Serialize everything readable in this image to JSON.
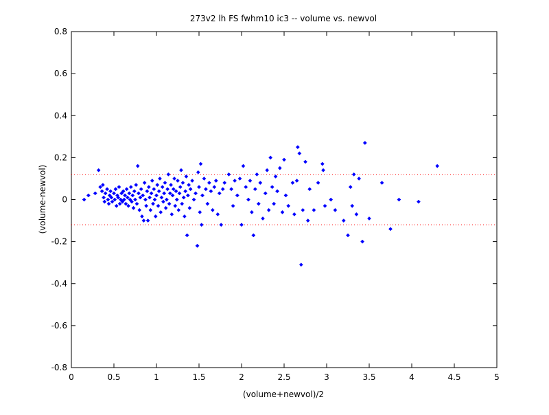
{
  "chart_data": {
    "type": "scatter",
    "title": "273v2 lh FS fwhm10 ic3 -- volume vs. newvol",
    "xlabel": "(volume+newvol)/2",
    "ylabel": "(volume-newvol)",
    "xlim": [
      0,
      5
    ],
    "ylim": [
      -0.8,
      0.8
    ],
    "xticks": [
      0,
      0.5,
      1,
      1.5,
      2,
      2.5,
      3,
      3.5,
      4,
      4.5,
      5
    ],
    "yticks": [
      -0.8,
      -0.6,
      -0.4,
      -0.2,
      0,
      0.2,
      0.4,
      0.6,
      0.8
    ],
    "xtick_labels": [
      "0",
      "0.5",
      "1",
      "1.5",
      "2",
      "2.5",
      "3",
      "3.5",
      "4",
      "4.5",
      "5"
    ],
    "ytick_labels": [
      "-0.8",
      "-0.6",
      "-0.4",
      "-0.2",
      "0",
      "0.2",
      "0.4",
      "0.6",
      "0.8"
    ],
    "grid": false,
    "marker_color": "#0000ff",
    "reference_lines": [
      {
        "y": 0.12,
        "style": "dotted",
        "color": "#ff0000"
      },
      {
        "y": -0.12,
        "style": "dotted",
        "color": "#ff0000"
      }
    ],
    "series": [
      {
        "marker": "diamond",
        "points": [
          [
            0.15,
            0.0
          ],
          [
            0.2,
            0.02
          ],
          [
            0.28,
            0.03
          ],
          [
            0.32,
            0.14
          ],
          [
            0.34,
            0.06
          ],
          [
            0.36,
            0.04
          ],
          [
            0.37,
            0.07
          ],
          [
            0.38,
            0.01
          ],
          [
            0.39,
            -0.01
          ],
          [
            0.4,
            0.03
          ],
          [
            0.42,
            0.05
          ],
          [
            0.43,
            0.0
          ],
          [
            0.44,
            -0.02
          ],
          [
            0.45,
            0.02
          ],
          [
            0.46,
            0.04
          ],
          [
            0.47,
            0.01
          ],
          [
            0.48,
            -0.01
          ],
          [
            0.5,
            0.03
          ],
          [
            0.51,
            0.0
          ],
          [
            0.52,
            0.05
          ],
          [
            0.53,
            -0.03
          ],
          [
            0.54,
            0.02
          ],
          [
            0.55,
            0.01
          ],
          [
            0.56,
            0.06
          ],
          [
            0.57,
            -0.02
          ],
          [
            0.58,
            0.0
          ],
          [
            0.59,
            0.03
          ],
          [
            0.6,
            -0.01
          ],
          [
            0.61,
            0.04
          ],
          [
            0.62,
            0.0
          ],
          [
            0.63,
            0.02
          ],
          [
            0.64,
            -0.02
          ],
          [
            0.65,
            0.05
          ],
          [
            0.66,
            0.01
          ],
          [
            0.67,
            -0.03
          ],
          [
            0.68,
            0.03
          ],
          [
            0.69,
            0.0
          ],
          [
            0.7,
            0.06
          ],
          [
            0.71,
            -0.01
          ],
          [
            0.72,
            0.02
          ],
          [
            0.73,
            -0.04
          ],
          [
            0.74,
            0.04
          ],
          [
            0.75,
            0.0
          ],
          [
            0.76,
            0.07
          ],
          [
            0.77,
            -0.02
          ],
          [
            0.78,
            0.16
          ],
          [
            0.79,
            0.03
          ],
          [
            0.8,
            -0.05
          ],
          [
            0.81,
            0.01
          ],
          [
            0.82,
            0.05
          ],
          [
            0.83,
            -0.08
          ],
          [
            0.84,
            0.02
          ],
          [
            0.85,
            -0.1
          ],
          [
            0.86,
            0.08
          ],
          [
            0.87,
            0.0
          ],
          [
            0.88,
            -0.03
          ],
          [
            0.89,
            0.04
          ],
          [
            0.9,
            -0.1
          ],
          [
            0.91,
            0.06
          ],
          [
            0.92,
            0.01
          ],
          [
            0.93,
            -0.05
          ],
          [
            0.94,
            0.03
          ],
          [
            0.95,
            0.09
          ],
          [
            0.96,
            -0.02
          ],
          [
            0.97,
            0.05
          ],
          [
            0.98,
            0.0
          ],
          [
            0.99,
            -0.08
          ],
          [
            1.0,
            0.02
          ],
          [
            1.01,
            0.07
          ],
          [
            1.02,
            -0.03
          ],
          [
            1.03,
            0.04
          ],
          [
            1.04,
            0.1
          ],
          [
            1.05,
            -0.06
          ],
          [
            1.06,
            0.01
          ],
          [
            1.07,
            0.06
          ],
          [
            1.08,
            -0.01
          ],
          [
            1.09,
            0.03
          ],
          [
            1.1,
            0.08
          ],
          [
            1.11,
            -0.04
          ],
          [
            1.12,
            0.0
          ],
          [
            1.13,
            0.05
          ],
          [
            1.14,
            0.12
          ],
          [
            1.15,
            -0.02
          ],
          [
            1.16,
            0.03
          ],
          [
            1.17,
            0.07
          ],
          [
            1.18,
            -0.07
          ],
          [
            1.19,
            0.02
          ],
          [
            1.2,
            0.05
          ],
          [
            1.21,
            0.1
          ],
          [
            1.22,
            -0.03
          ],
          [
            1.23,
            0.04
          ],
          [
            1.24,
            0.0
          ],
          [
            1.25,
            0.09
          ],
          [
            1.26,
            -0.05
          ],
          [
            1.27,
            0.03
          ],
          [
            1.28,
            0.06
          ],
          [
            1.29,
            0.14
          ],
          [
            1.3,
            -0.02
          ],
          [
            1.31,
            0.08
          ],
          [
            1.32,
            0.01
          ],
          [
            1.33,
            -0.08
          ],
          [
            1.34,
            0.04
          ],
          [
            1.35,
            0.11
          ],
          [
            1.36,
            -0.17
          ],
          [
            1.37,
            0.02
          ],
          [
            1.38,
            0.07
          ],
          [
            1.39,
            -0.04
          ],
          [
            1.4,
            0.05
          ],
          [
            1.42,
            0.09
          ],
          [
            1.44,
            0.0
          ],
          [
            1.46,
            0.03
          ],
          [
            1.48,
            -0.22
          ],
          [
            1.49,
            0.13
          ],
          [
            1.5,
            0.06
          ],
          [
            1.51,
            -0.06
          ],
          [
            1.52,
            0.17
          ],
          [
            1.53,
            -0.12
          ],
          [
            1.54,
            0.02
          ],
          [
            1.56,
            0.1
          ],
          [
            1.58,
            0.05
          ],
          [
            1.6,
            -0.02
          ],
          [
            1.62,
            0.08
          ],
          [
            1.64,
            0.04
          ],
          [
            1.66,
            -0.05
          ],
          [
            1.68,
            0.06
          ],
          [
            1.7,
            0.09
          ],
          [
            1.72,
            -0.07
          ],
          [
            1.74,
            0.03
          ],
          [
            1.76,
            -0.12
          ],
          [
            1.78,
            0.05
          ],
          [
            1.8,
            0.08
          ],
          [
            1.85,
            0.12
          ],
          [
            1.88,
            0.05
          ],
          [
            1.9,
            -0.03
          ],
          [
            1.92,
            0.09
          ],
          [
            1.95,
            0.02
          ],
          [
            1.98,
            0.1
          ],
          [
            2.0,
            -0.12
          ],
          [
            2.02,
            0.16
          ],
          [
            2.05,
            0.06
          ],
          [
            2.08,
            0.0
          ],
          [
            2.1,
            0.09
          ],
          [
            2.12,
            -0.06
          ],
          [
            2.14,
            -0.17
          ],
          [
            2.16,
            0.05
          ],
          [
            2.18,
            0.12
          ],
          [
            2.2,
            -0.02
          ],
          [
            2.22,
            0.08
          ],
          [
            2.25,
            -0.09
          ],
          [
            2.28,
            0.03
          ],
          [
            2.3,
            0.14
          ],
          [
            2.32,
            -0.05
          ],
          [
            2.34,
            0.2
          ],
          [
            2.36,
            0.06
          ],
          [
            2.38,
            -0.02
          ],
          [
            2.4,
            0.11
          ],
          [
            2.42,
            0.04
          ],
          [
            2.45,
            0.15
          ],
          [
            2.48,
            -0.06
          ],
          [
            2.5,
            0.19
          ],
          [
            2.52,
            0.02
          ],
          [
            2.55,
            -0.03
          ],
          [
            2.6,
            0.08
          ],
          [
            2.62,
            -0.07
          ],
          [
            2.65,
            0.09
          ],
          [
            2.66,
            0.25
          ],
          [
            2.68,
            0.22
          ],
          [
            2.7,
            -0.31
          ],
          [
            2.72,
            -0.05
          ],
          [
            2.75,
            0.18
          ],
          [
            2.78,
            -0.1
          ],
          [
            2.8,
            0.05
          ],
          [
            2.85,
            -0.05
          ],
          [
            2.9,
            0.08
          ],
          [
            2.95,
            0.17
          ],
          [
            2.96,
            0.14
          ],
          [
            2.98,
            -0.03
          ],
          [
            3.05,
            0.0
          ],
          [
            3.1,
            -0.05
          ],
          [
            3.2,
            -0.1
          ],
          [
            3.25,
            -0.17
          ],
          [
            3.28,
            0.06
          ],
          [
            3.3,
            -0.03
          ],
          [
            3.32,
            0.12
          ],
          [
            3.35,
            -0.07
          ],
          [
            3.38,
            0.1
          ],
          [
            3.42,
            -0.2
          ],
          [
            3.45,
            0.27
          ],
          [
            3.5,
            -0.09
          ],
          [
            3.65,
            0.08
          ],
          [
            3.75,
            -0.14
          ],
          [
            3.85,
            0.0
          ],
          [
            4.08,
            -0.01
          ],
          [
            4.3,
            0.16
          ]
        ]
      }
    ]
  }
}
